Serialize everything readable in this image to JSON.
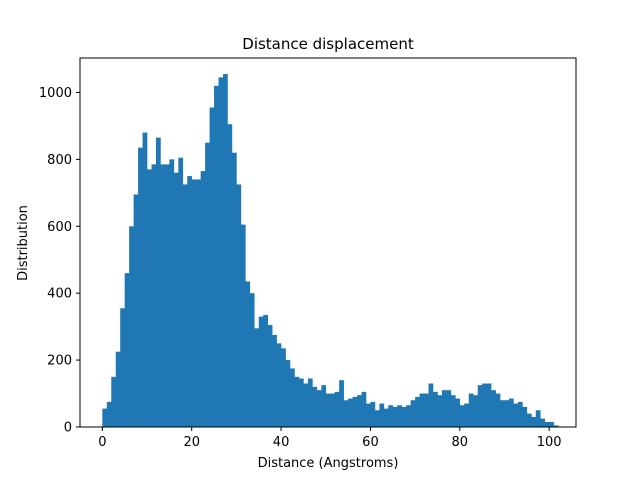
{
  "chart_data": {
    "type": "bar",
    "title": "Distance displacement",
    "xlabel": "Distance (Angstroms)",
    "ylabel": "Distribution",
    "xlim": [
      -5,
      106
    ],
    "ylim": [
      0,
      1103
    ],
    "xticks": [
      0,
      20,
      40,
      60,
      80,
      100
    ],
    "yticks": [
      0,
      200,
      400,
      600,
      800,
      1000
    ],
    "grid": false,
    "bin_start": 0,
    "bin_width": 1,
    "bar_color": "#1f77b4",
    "values": [
      55,
      75,
      150,
      225,
      355,
      460,
      600,
      695,
      835,
      880,
      770,
      785,
      865,
      785,
      785,
      800,
      760,
      805,
      725,
      750,
      740,
      740,
      765,
      850,
      955,
      1020,
      1045,
      1055,
      905,
      820,
      725,
      605,
      435,
      400,
      295,
      330,
      335,
      305,
      275,
      250,
      235,
      200,
      175,
      150,
      145,
      130,
      145,
      120,
      110,
      125,
      100,
      100,
      105,
      140,
      80,
      85,
      90,
      95,
      105,
      70,
      75,
      50,
      70,
      55,
      65,
      60,
      65,
      60,
      65,
      80,
      90,
      100,
      100,
      130,
      105,
      95,
      110,
      110,
      95,
      85,
      65,
      70,
      100,
      95,
      125,
      130,
      130,
      110,
      100,
      80,
      80,
      85,
      70,
      75,
      60,
      40,
      30,
      50,
      25,
      15,
      15,
      5
    ]
  }
}
